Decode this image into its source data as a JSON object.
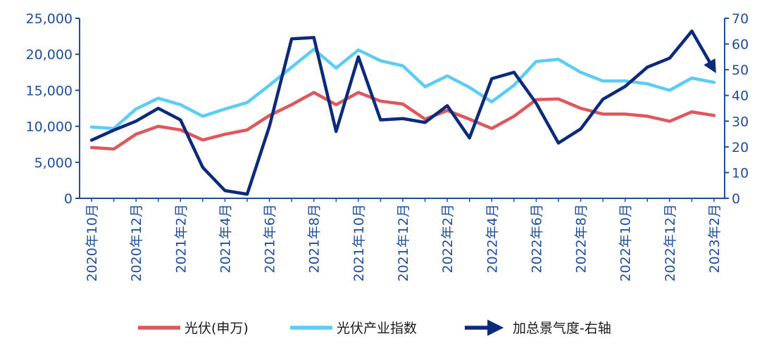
{
  "chart_data": {
    "type": "line",
    "left_axis": {
      "ylim": [
        0,
        25000
      ],
      "ticks": [
        "0",
        "5,000",
        "10,000",
        "15,000",
        "20,000",
        "25,000"
      ],
      "tick_values": [
        0,
        5000,
        10000,
        15000,
        20000,
        25000
      ]
    },
    "right_axis": {
      "ylim": [
        0,
        70
      ],
      "ticks": [
        "0",
        "10",
        "20",
        "30",
        "40",
        "50",
        "60",
        "70"
      ],
      "tick_values": [
        0,
        10,
        20,
        30,
        40,
        50,
        60,
        70
      ]
    },
    "x_tick_labels": [
      "2020年10月",
      "2020年12月",
      "2021年2月",
      "2021年4月",
      "2021年6月",
      "2021年8月",
      "2021年10月",
      "2021年12月",
      "2022年2月",
      "2022年4月",
      "2022年6月",
      "2022年8月",
      "2022年10月",
      "2022年12月",
      "2023年2月"
    ],
    "series": [
      {
        "name": "光伏(申万)",
        "axis": "left",
        "color": "#e0575b",
        "values": [
          7050,
          6850,
          8900,
          10000,
          9500,
          8100,
          8900,
          9500,
          11500,
          13000,
          14700,
          13000,
          14700,
          13500,
          13100,
          11000,
          12200,
          11000,
          9700,
          11400,
          13700,
          13800,
          12500,
          11700,
          11700,
          11400,
          10700,
          12000,
          11500
        ]
      },
      {
        "name": "光伏产业指数",
        "axis": "left",
        "color": "#5bcdf4",
        "values": [
          9900,
          9700,
          12400,
          13900,
          13000,
          11400,
          12400,
          13300,
          15700,
          18200,
          20700,
          18100,
          20600,
          19100,
          18400,
          15500,
          17000,
          15400,
          13400,
          15700,
          19000,
          19300,
          17500,
          16300,
          16300,
          15900,
          15000,
          16700,
          16100
        ]
      },
      {
        "name": "加总景气度-右轴",
        "axis": "right",
        "color": "#0b2a7a",
        "values": [
          22.6,
          26.5,
          30,
          35,
          30.5,
          12,
          3,
          1.6,
          28,
          62,
          62.5,
          26,
          55,
          30.5,
          31,
          29.5,
          36,
          23.5,
          46.5,
          49,
          37,
          21.5,
          27,
          38.5,
          43.5,
          51,
          54.5,
          65,
          50
        ]
      }
    ],
    "legend": {
      "placement": "bottom-center"
    },
    "grid": false
  }
}
